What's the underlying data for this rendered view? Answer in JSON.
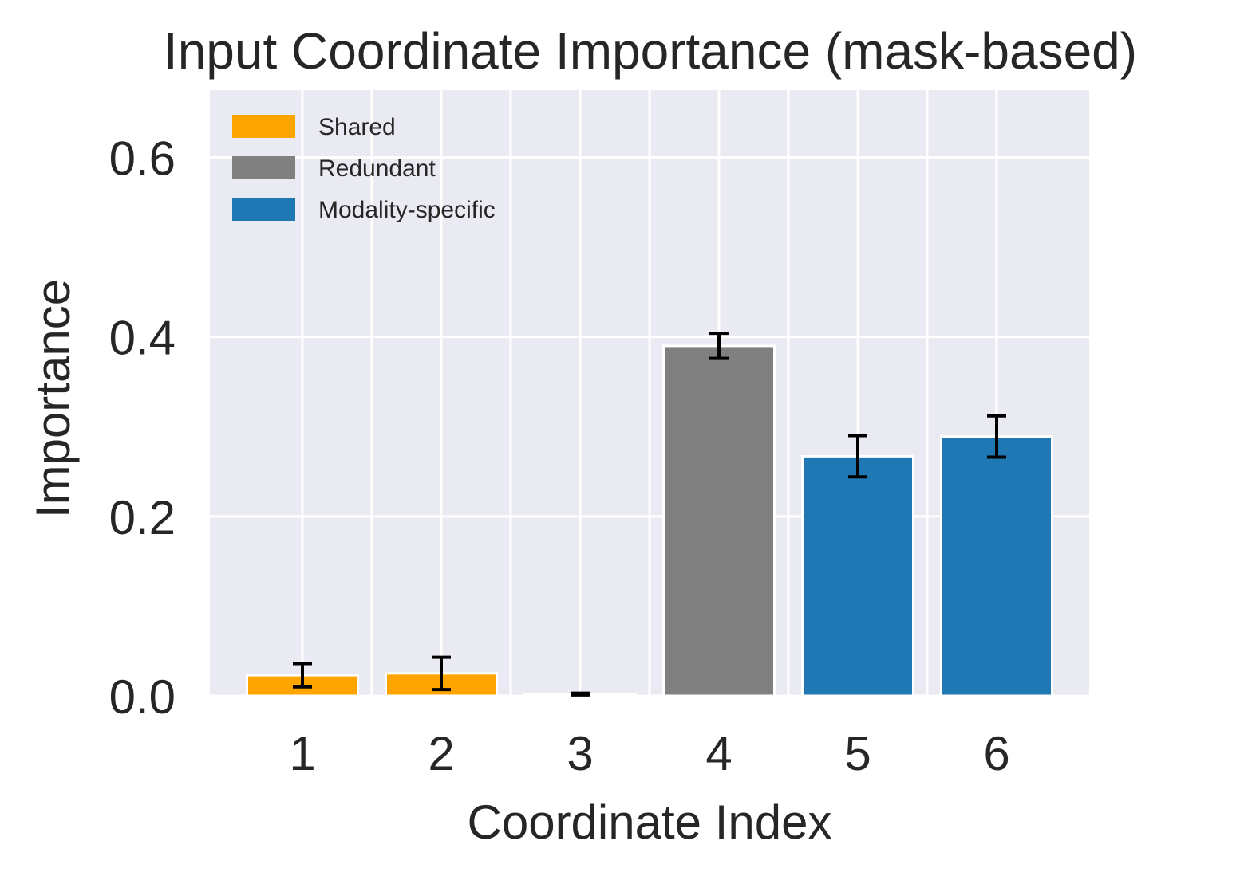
{
  "chart_data": {
    "type": "bar",
    "title": "Input Coordinate Importance (mask-based)",
    "xlabel": "Coordinate Index",
    "ylabel": "Importance",
    "categories": [
      "1",
      "2",
      "3",
      "4",
      "5",
      "6"
    ],
    "values": [
      0.023,
      0.025,
      0.002,
      0.39,
      0.267,
      0.289
    ],
    "errors": [
      0.013,
      0.018,
      0.001,
      0.014,
      0.023,
      0.023
    ],
    "groups": [
      "Shared",
      "Shared",
      "Shared",
      "Redundant",
      "Modality-specific",
      "Modality-specific"
    ],
    "ylim": [
      0,
      0.675
    ],
    "yticks": [
      0.0,
      0.2,
      0.4,
      0.6
    ],
    "ytick_labels": [
      "0.0",
      "0.2",
      "0.4",
      "0.6"
    ],
    "grid": true,
    "legend": {
      "placement": "upper-left",
      "entries": [
        {
          "label": "Shared",
          "color": "#ffa500"
        },
        {
          "label": "Redundant",
          "color": "#808080"
        },
        {
          "label": "Modality-specific",
          "color": "#1f77b4"
        }
      ]
    },
    "colors": {
      "Shared": "#ffa500",
      "Redundant": "#808080",
      "Modality-specific": "#1f77b4",
      "plot_background": "#eaeaf2"
    }
  }
}
